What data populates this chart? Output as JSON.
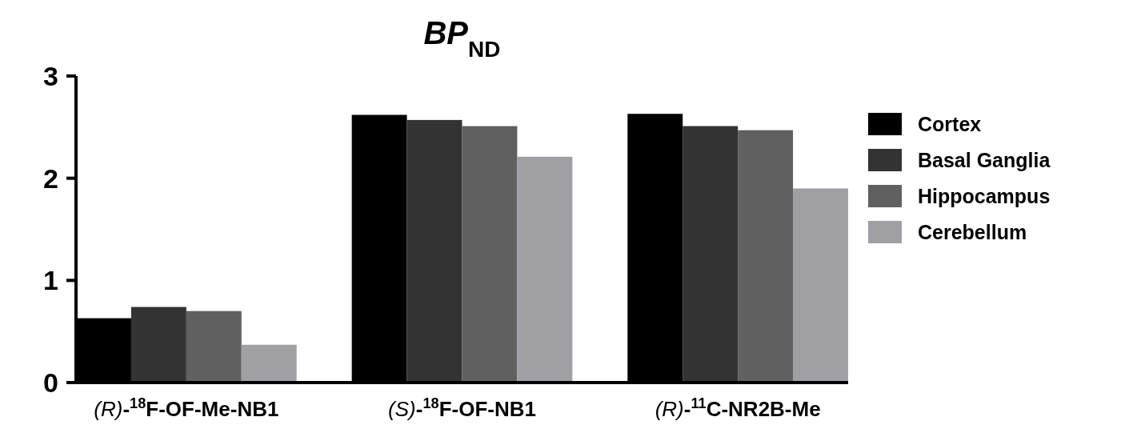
{
  "chart_data": {
    "type": "bar",
    "title": "BP$_{ND}$",
    "categories": [
      "(R)-$^{18}$F-OF-Me-NB1",
      "(S)-$^{18}$F-OF-NB1",
      "(R)-$^{11}$C-NR2B-Me"
    ],
    "series": [
      {
        "name": "Cortex",
        "color": "#000000",
        "values": [
          0.63,
          2.62,
          2.63
        ]
      },
      {
        "name": "Basal Ganglia",
        "color": "#333333",
        "values": [
          0.74,
          2.57,
          2.51
        ]
      },
      {
        "name": "Hippocampus",
        "color": "#606060",
        "values": [
          0.7,
          2.51,
          2.47
        ]
      },
      {
        "name": "Cerebellum",
        "color": "#a0a0a4",
        "values": [
          0.37,
          2.21,
          1.9
        ]
      }
    ],
    "ylim": [
      0,
      3
    ],
    "yticks": [
      0,
      1,
      2,
      3
    ],
    "grid": false,
    "legend": "right"
  }
}
